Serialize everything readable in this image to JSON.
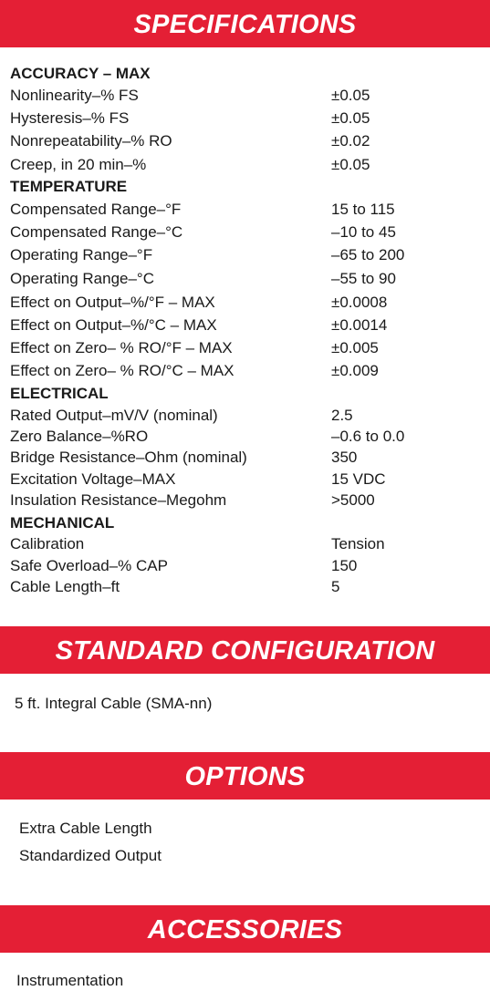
{
  "sections": {
    "specifications": "SPECIFICATIONS",
    "standard_configuration": "STANDARD CONFIGURATION",
    "options": "OPTIONS",
    "accessories": "ACCESSORIES"
  },
  "specs": {
    "accuracy": {
      "heading": "ACCURACY – MAX",
      "rows": [
        {
          "label": "Nonlinearity–% FS",
          "value": "±0.05"
        },
        {
          "label": "Hysteresis–% FS",
          "value": "±0.05"
        },
        {
          "label": "Nonrepeatability–% RO",
          "value": "±0.02"
        },
        {
          "label": "Creep, in 20 min–%",
          "value": "±0.05"
        }
      ]
    },
    "temperature": {
      "heading": "TEMPERATURE",
      "rows": [
        {
          "label": "Compensated Range–°F",
          "value": "15 to 115"
        },
        {
          "label": "Compensated Range–°C",
          "value": "–10 to 45"
        },
        {
          "label": "Operating Range–°F",
          "value": "–65 to 200"
        },
        {
          "label": "Operating Range–°C",
          "value": "–55 to 90"
        },
        {
          "label": "Effect on Output–%/°F – MAX",
          "value": "±0.0008"
        },
        {
          "label": "Effect on Output–%/°C – MAX",
          "value": "±0.0014"
        },
        {
          "label": "Effect on Zero– % RO/°F – MAX",
          "value": "±0.005"
        },
        {
          "label": "Effect on Zero– % RO/°C – MAX",
          "value": "±0.009"
        }
      ]
    },
    "electrical": {
      "heading": "ELECTRICAL",
      "rows": [
        {
          "label": "Rated Output–mV/V (nominal)",
          "value": "2.5"
        },
        {
          "label": "Zero Balance–%RO",
          "value": "–0.6 to 0.0"
        },
        {
          "label": "Bridge Resistance–Ohm (nominal)",
          "value": "350"
        },
        {
          "label": "Excitation Voltage–MAX",
          "value": "15 VDC"
        },
        {
          "label": "Insulation Resistance–Megohm",
          "value": ">5000"
        }
      ]
    },
    "mechanical": {
      "heading": "MECHANICAL",
      "rows": [
        {
          "label": "Calibration",
          "value": "Tension"
        },
        {
          "label": "Safe Overload–% CAP",
          "value": "150"
        },
        {
          "label": "Cable Length–ft",
          "value": "5"
        }
      ]
    }
  },
  "standard_configuration": [
    "5 ft. Integral Cable (SMA-nn)"
  ],
  "options": [
    "Extra Cable Length",
    "Standardized Output"
  ],
  "accessories": [
    "Instrumentation"
  ]
}
